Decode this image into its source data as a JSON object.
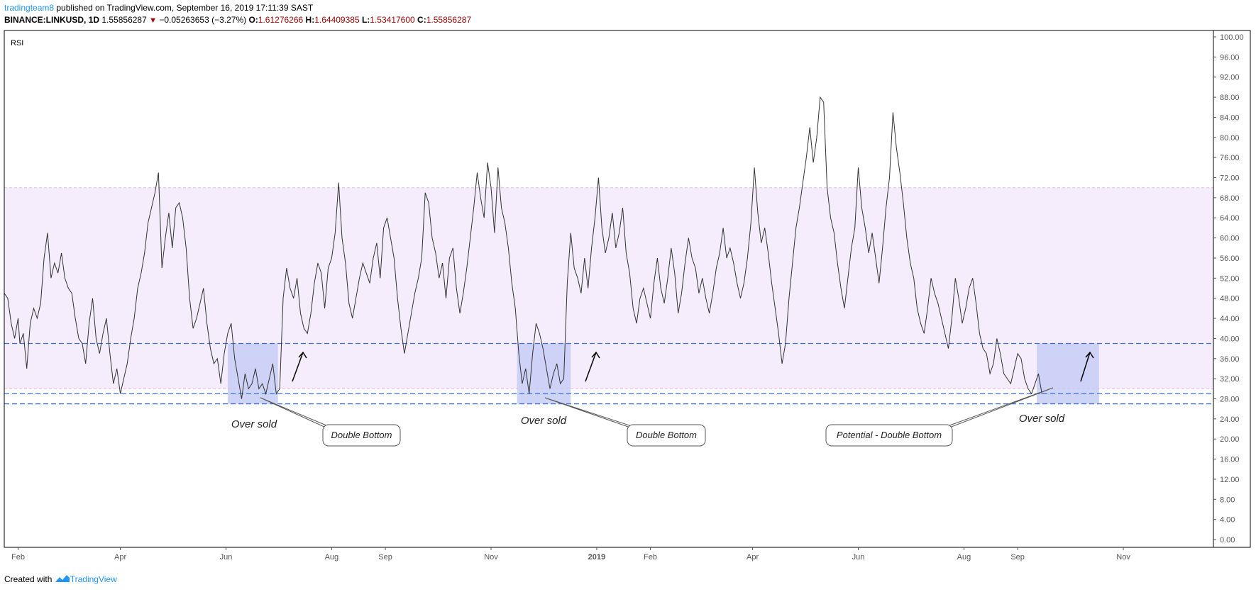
{
  "header": {
    "author": "tradingteam8",
    "published": " published on TradingView.com, September 16, 2019 17:11:39 SAST",
    "symbol": "BINANCE:LINKUSD, 1D",
    "last": "1.55856287",
    "change": "−0.05263653 (−3.27%)",
    "o_label": "O:",
    "o": "1.61276266",
    "h_label": "H:",
    "h": "1.64409385",
    "l_label": "L:",
    "l": "1.53417600",
    "c_label": "C:",
    "c": "1.55856287"
  },
  "footer": {
    "created_with": "Created with",
    "brand": "TradingView"
  },
  "chart_data": {
    "type": "line",
    "title": "RSI",
    "ylim": [
      0,
      100
    ],
    "y_ticks": [
      "0.00",
      "4.00",
      "8.00",
      "12.00",
      "16.00",
      "20.00",
      "24.00",
      "28.00",
      "32.00",
      "36.00",
      "40.00",
      "44.00",
      "48.00",
      "52.00",
      "56.00",
      "60.00",
      "64.00",
      "68.00",
      "72.00",
      "76.00",
      "80.00",
      "84.00",
      "88.00",
      "92.00",
      "96.00",
      "100.00"
    ],
    "x_ticks": [
      {
        "label": "Feb",
        "day": 0
      },
      {
        "label": "Apr",
        "day": 59
      },
      {
        "label": "Jun",
        "day": 120
      },
      {
        "label": "Aug",
        "day": 181
      },
      {
        "label": "Sep",
        "day": 212
      },
      {
        "label": "Nov",
        "day": 273
      },
      {
        "label": "2019",
        "day": 334
      },
      {
        "label": "Feb",
        "day": 365
      },
      {
        "label": "Apr",
        "day": 424
      },
      {
        "label": "Jun",
        "day": 485
      },
      {
        "label": "Aug",
        "day": 546
      },
      {
        "label": "Sep",
        "day": 577
      },
      {
        "label": "Nov",
        "day": 638
      }
    ],
    "x_domain_days": [
      -8,
      690
    ],
    "band": {
      "upper": 70,
      "lower": 30
    },
    "levels": [
      39,
      29,
      27
    ],
    "series": [
      {
        "values": [
          [
            -8,
            49
          ],
          [
            -6,
            48
          ],
          [
            -4,
            43
          ],
          [
            -2,
            40
          ],
          [
            0,
            44
          ],
          [
            1,
            39
          ],
          [
            3,
            41
          ],
          [
            5,
            34
          ],
          [
            7,
            43
          ],
          [
            9,
            46
          ],
          [
            11,
            44
          ],
          [
            13,
            47
          ],
          [
            15,
            56
          ],
          [
            17,
            61
          ],
          [
            19,
            52
          ],
          [
            21,
            55
          ],
          [
            23,
            53
          ],
          [
            25,
            57
          ],
          [
            27,
            52
          ],
          [
            29,
            50
          ],
          [
            31,
            49
          ],
          [
            33,
            44
          ],
          [
            35,
            40
          ],
          [
            37,
            39
          ],
          [
            39,
            35
          ],
          [
            41,
            43
          ],
          [
            43,
            48
          ],
          [
            45,
            40
          ],
          [
            47,
            37
          ],
          [
            49,
            41
          ],
          [
            51,
            44
          ],
          [
            53,
            37
          ],
          [
            55,
            31
          ],
          [
            57,
            34
          ],
          [
            59,
            29
          ],
          [
            61,
            32
          ],
          [
            63,
            35
          ],
          [
            65,
            40
          ],
          [
            67,
            44
          ],
          [
            69,
            50
          ],
          [
            71,
            53
          ],
          [
            73,
            57
          ],
          [
            75,
            63
          ],
          [
            77,
            66
          ],
          [
            79,
            69
          ],
          [
            81,
            73
          ],
          [
            83,
            54
          ],
          [
            85,
            60
          ],
          [
            87,
            65
          ],
          [
            89,
            58
          ],
          [
            91,
            66
          ],
          [
            93,
            67
          ],
          [
            95,
            64
          ],
          [
            97,
            58
          ],
          [
            99,
            48
          ],
          [
            101,
            42
          ],
          [
            103,
            44
          ],
          [
            105,
            47
          ],
          [
            107,
            50
          ],
          [
            109,
            43
          ],
          [
            111,
            38
          ],
          [
            113,
            35
          ],
          [
            115,
            36
          ],
          [
            117,
            31
          ],
          [
            119,
            37
          ],
          [
            121,
            41
          ],
          [
            123,
            43
          ],
          [
            125,
            36
          ],
          [
            127,
            32
          ],
          [
            129,
            28
          ],
          [
            131,
            33
          ],
          [
            133,
            30
          ],
          [
            135,
            31
          ],
          [
            137,
            34
          ],
          [
            139,
            30
          ],
          [
            141,
            31
          ],
          [
            143,
            29
          ],
          [
            145,
            32
          ],
          [
            147,
            35
          ],
          [
            149,
            29
          ],
          [
            151,
            30
          ],
          [
            153,
            48
          ],
          [
            155,
            54
          ],
          [
            157,
            50
          ],
          [
            159,
            48
          ],
          [
            161,
            52
          ],
          [
            163,
            45
          ],
          [
            165,
            42
          ],
          [
            167,
            41
          ],
          [
            169,
            45
          ],
          [
            171,
            51
          ],
          [
            173,
            55
          ],
          [
            175,
            53
          ],
          [
            177,
            46
          ],
          [
            179,
            54
          ],
          [
            181,
            56
          ],
          [
            183,
            61
          ],
          [
            185,
            71
          ],
          [
            187,
            60
          ],
          [
            189,
            55
          ],
          [
            191,
            47
          ],
          [
            193,
            44
          ],
          [
            195,
            48
          ],
          [
            197,
            52
          ],
          [
            199,
            55
          ],
          [
            201,
            53
          ],
          [
            203,
            51
          ],
          [
            205,
            56
          ],
          [
            207,
            59
          ],
          [
            209,
            52
          ],
          [
            211,
            62
          ],
          [
            213,
            64
          ],
          [
            215,
            60
          ],
          [
            217,
            56
          ],
          [
            219,
            48
          ],
          [
            221,
            42
          ],
          [
            223,
            37
          ],
          [
            225,
            41
          ],
          [
            227,
            45
          ],
          [
            229,
            49
          ],
          [
            231,
            52
          ],
          [
            233,
            56
          ],
          [
            235,
            69
          ],
          [
            237,
            67
          ],
          [
            239,
            60
          ],
          [
            241,
            57
          ],
          [
            243,
            52
          ],
          [
            245,
            55
          ],
          [
            247,
            48
          ],
          [
            249,
            56
          ],
          [
            251,
            58
          ],
          [
            253,
            50
          ],
          [
            255,
            45
          ],
          [
            257,
            49
          ],
          [
            259,
            54
          ],
          [
            261,
            60
          ],
          [
            263,
            66
          ],
          [
            265,
            73
          ],
          [
            267,
            68
          ],
          [
            269,
            64
          ],
          [
            271,
            75
          ],
          [
            273,
            70
          ],
          [
            275,
            61
          ],
          [
            277,
            74
          ],
          [
            279,
            66
          ],
          [
            281,
            63
          ],
          [
            283,
            58
          ],
          [
            285,
            51
          ],
          [
            287,
            46
          ],
          [
            289,
            37
          ],
          [
            291,
            31
          ],
          [
            293,
            34
          ],
          [
            295,
            29
          ],
          [
            297,
            37
          ],
          [
            299,
            43
          ],
          [
            301,
            41
          ],
          [
            303,
            38
          ],
          [
            305,
            34
          ],
          [
            307,
            30
          ],
          [
            309,
            33
          ],
          [
            311,
            35
          ],
          [
            313,
            31
          ],
          [
            315,
            32
          ],
          [
            317,
            51
          ],
          [
            319,
            61
          ],
          [
            321,
            54
          ],
          [
            323,
            52
          ],
          [
            325,
            49
          ],
          [
            327,
            56
          ],
          [
            329,
            50
          ],
          [
            331,
            58
          ],
          [
            333,
            64
          ],
          [
            335,
            72
          ],
          [
            337,
            62
          ],
          [
            339,
            57
          ],
          [
            341,
            60
          ],
          [
            343,
            65
          ],
          [
            345,
            58
          ],
          [
            347,
            61
          ],
          [
            349,
            66
          ],
          [
            351,
            57
          ],
          [
            353,
            53
          ],
          [
            355,
            46
          ],
          [
            357,
            43
          ],
          [
            359,
            48
          ],
          [
            361,
            50
          ],
          [
            363,
            47
          ],
          [
            365,
            44
          ],
          [
            367,
            51
          ],
          [
            369,
            56
          ],
          [
            371,
            50
          ],
          [
            373,
            47
          ],
          [
            375,
            52
          ],
          [
            377,
            58
          ],
          [
            379,
            53
          ],
          [
            381,
            45
          ],
          [
            383,
            49
          ],
          [
            385,
            55
          ],
          [
            387,
            60
          ],
          [
            389,
            56
          ],
          [
            391,
            54
          ],
          [
            393,
            49
          ],
          [
            395,
            52
          ],
          [
            397,
            48
          ],
          [
            399,
            45
          ],
          [
            401,
            49
          ],
          [
            403,
            54
          ],
          [
            405,
            57
          ],
          [
            407,
            62
          ],
          [
            409,
            56
          ],
          [
            411,
            58
          ],
          [
            413,
            55
          ],
          [
            415,
            51
          ],
          [
            417,
            48
          ],
          [
            419,
            51
          ],
          [
            421,
            56
          ],
          [
            423,
            63
          ],
          [
            425,
            74
          ],
          [
            427,
            65
          ],
          [
            429,
            59
          ],
          [
            431,
            62
          ],
          [
            433,
            57
          ],
          [
            435,
            51
          ],
          [
            437,
            46
          ],
          [
            439,
            41
          ],
          [
            441,
            35
          ],
          [
            443,
            39
          ],
          [
            445,
            48
          ],
          [
            447,
            55
          ],
          [
            449,
            62
          ],
          [
            451,
            66
          ],
          [
            453,
            71
          ],
          [
            455,
            76
          ],
          [
            457,
            82
          ],
          [
            459,
            75
          ],
          [
            461,
            80
          ],
          [
            463,
            88
          ],
          [
            465,
            87
          ],
          [
            467,
            70
          ],
          [
            469,
            64
          ],
          [
            471,
            61
          ],
          [
            473,
            55
          ],
          [
            475,
            50
          ],
          [
            477,
            46
          ],
          [
            479,
            52
          ],
          [
            481,
            58
          ],
          [
            483,
            62
          ],
          [
            485,
            74
          ],
          [
            487,
            66
          ],
          [
            489,
            62
          ],
          [
            491,
            57
          ],
          [
            493,
            61
          ],
          [
            495,
            56
          ],
          [
            497,
            51
          ],
          [
            499,
            58
          ],
          [
            501,
            66
          ],
          [
            503,
            72
          ],
          [
            505,
            85
          ],
          [
            507,
            78
          ],
          [
            509,
            73
          ],
          [
            511,
            67
          ],
          [
            513,
            60
          ],
          [
            515,
            55
          ],
          [
            517,
            52
          ],
          [
            519,
            46
          ],
          [
            521,
            43
          ],
          [
            523,
            41
          ],
          [
            525,
            46
          ],
          [
            527,
            52
          ],
          [
            529,
            49
          ],
          [
            531,
            47
          ],
          [
            533,
            44
          ],
          [
            535,
            41
          ],
          [
            537,
            38
          ],
          [
            539,
            44
          ],
          [
            541,
            52
          ],
          [
            543,
            48
          ],
          [
            545,
            43
          ],
          [
            547,
            46
          ],
          [
            549,
            50
          ],
          [
            551,
            52
          ],
          [
            553,
            47
          ],
          [
            555,
            41
          ],
          [
            557,
            38
          ],
          [
            559,
            37
          ],
          [
            561,
            33
          ],
          [
            563,
            35
          ],
          [
            565,
            40
          ],
          [
            567,
            37
          ],
          [
            569,
            33
          ],
          [
            571,
            32
          ],
          [
            573,
            31
          ],
          [
            575,
            34
          ],
          [
            577,
            37
          ],
          [
            579,
            36
          ],
          [
            581,
            32
          ],
          [
            583,
            30
          ],
          [
            585,
            29
          ],
          [
            587,
            31
          ],
          [
            589,
            33
          ],
          [
            591,
            29
          ]
        ]
      }
    ],
    "annotations": [
      {
        "text": "Over sold"
      },
      {
        "text": "Double Bottom"
      },
      {
        "text": "Over sold"
      },
      {
        "text": "Double Bottom"
      },
      {
        "text": "Potential - Double Bottom"
      },
      {
        "text": "Over sold"
      }
    ]
  }
}
